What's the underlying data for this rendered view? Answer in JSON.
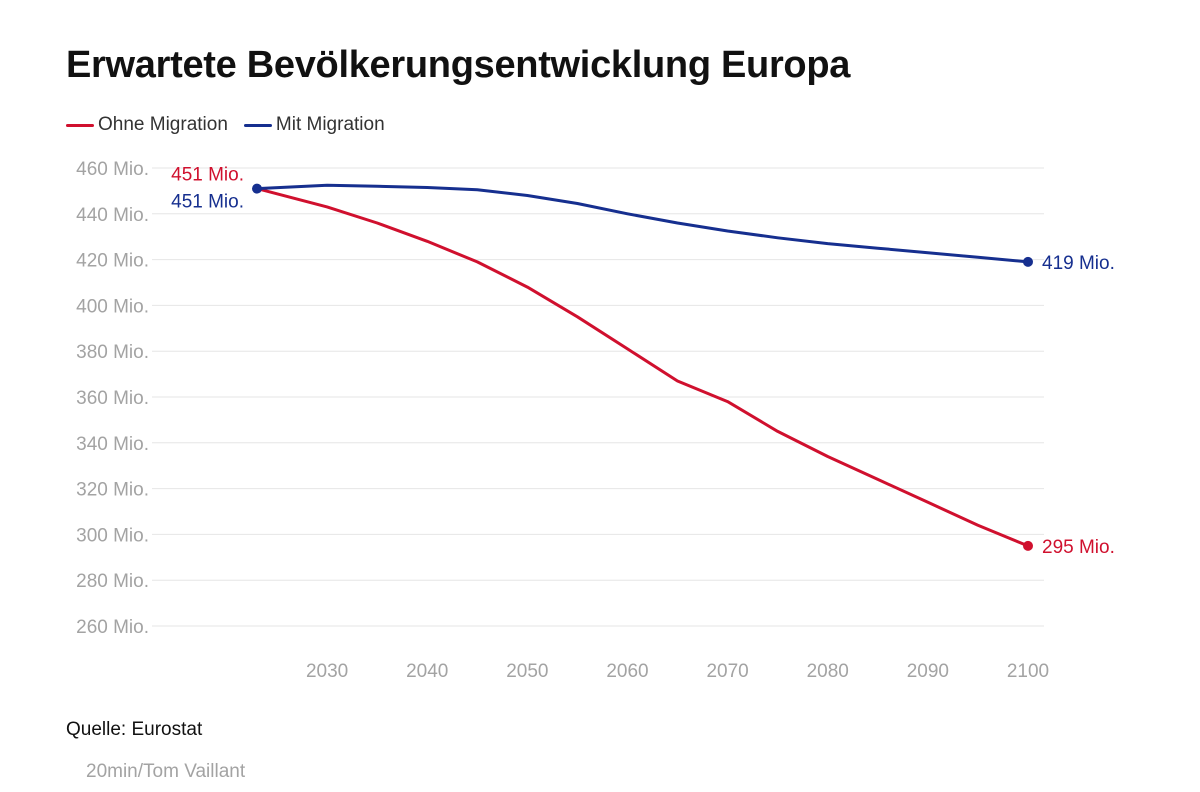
{
  "chart_data": {
    "type": "line",
    "title": "Erwartete Bevölkerungsentwicklung Europa",
    "xlabel": "",
    "ylabel": "",
    "xlim": [
      2023,
      2100
    ],
    "ylim": [
      250,
      462
    ],
    "x_ticks": [
      2030,
      2040,
      2050,
      2060,
      2070,
      2080,
      2090,
      2100
    ],
    "x_tick_labels": [
      "2030",
      "2040",
      "2050",
      "2060",
      "2070",
      "2080",
      "2090",
      "2100"
    ],
    "y_ticks": [
      260,
      280,
      300,
      320,
      340,
      360,
      380,
      400,
      420,
      440,
      460
    ],
    "y_tick_labels": [
      "260 Mio.",
      "280 Mio.",
      "300 Mio.",
      "320 Mio.",
      "340 Mio.",
      "360 Mio.",
      "380 Mio.",
      "400 Mio.",
      "420 Mio.",
      "440 Mio.",
      "460 Mio."
    ],
    "grid": true,
    "legend": "top-left",
    "series": [
      {
        "name": "Ohne Migration",
        "color": "#d0102e",
        "x": [
          2023,
          2030,
          2035,
          2040,
          2045,
          2050,
          2055,
          2060,
          2065,
          2070,
          2075,
          2080,
          2085,
          2090,
          2095,
          2100
        ],
        "values": [
          451,
          443,
          436,
          428,
          419,
          408,
          395,
          381,
          367,
          358,
          345,
          334,
          324,
          314,
          304,
          295
        ],
        "start_label": "451 Mio.",
        "end_label": "295 Mio."
      },
      {
        "name": "Mit Migration",
        "color": "#162f8f",
        "x": [
          2023,
          2030,
          2035,
          2040,
          2045,
          2050,
          2055,
          2060,
          2065,
          2070,
          2075,
          2080,
          2085,
          2090,
          2095,
          2100
        ],
        "values": [
          451,
          452.5,
          452,
          451.5,
          450.5,
          448,
          444.5,
          440,
          436,
          432.5,
          429.5,
          427,
          425,
          423,
          421,
          419
        ],
        "start_label": "451 Mio.",
        "end_label": "419 Mio."
      }
    ]
  },
  "footer": {
    "source": "Quelle: Eurostat",
    "credit": "20min/Tom Vaillant"
  },
  "colors": {
    "grid": "#e6e6e6",
    "tick_text": "#a3a3a3"
  }
}
